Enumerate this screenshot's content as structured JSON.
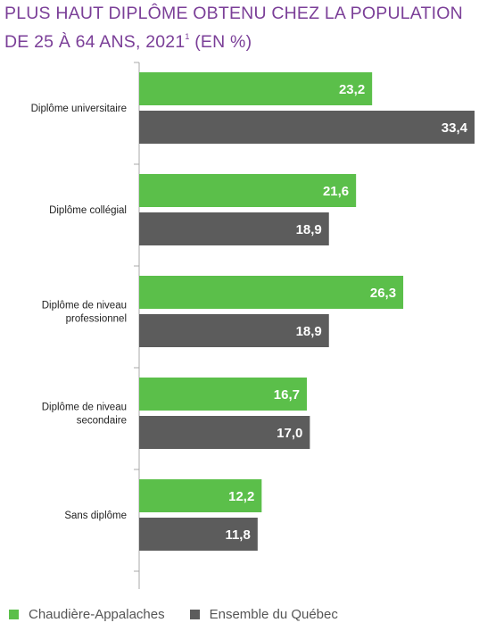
{
  "title": {
    "main": "PLUS HAUT DIPLÔME OBTENU CHEZ LA POPULATION DE 25 À 64 ANS, 2021",
    "footnote_marker": "1",
    "unit": "(EN %)"
  },
  "colors": {
    "chaudiere": "#5bbf4a",
    "quebec": "#5c5c5c",
    "axis": "#a8a8a8",
    "title": "#7b3f98"
  },
  "chart_data": {
    "type": "bar",
    "orientation": "horizontal",
    "title": "PLUS HAUT DIPLÔME OBTENU CHEZ LA POPULATION DE 25 À 64 ANS, 2021¹ (EN %)",
    "categories": [
      [
        "Diplôme universitaire"
      ],
      [
        "Diplôme collégial"
      ],
      [
        "Diplôme de niveau",
        "professionnel"
      ],
      [
        "Diplôme de niveau",
        "secondaire"
      ],
      [
        "Sans diplôme"
      ]
    ],
    "series": [
      {
        "name": "Chaudière-Appalaches",
        "values": [
          23.2,
          21.6,
          26.3,
          16.7,
          12.2
        ],
        "labels": [
          "23,2",
          "21,6",
          "26,3",
          "16,7",
          "12,2"
        ]
      },
      {
        "name": "Ensemble du Québec",
        "values": [
          33.4,
          18.9,
          18.9,
          17.0,
          11.8
        ],
        "labels": [
          "33,4",
          "18,9",
          "18,9",
          "17,0",
          "11,8"
        ]
      }
    ],
    "legend_position": "bottom-left",
    "grid": false
  }
}
